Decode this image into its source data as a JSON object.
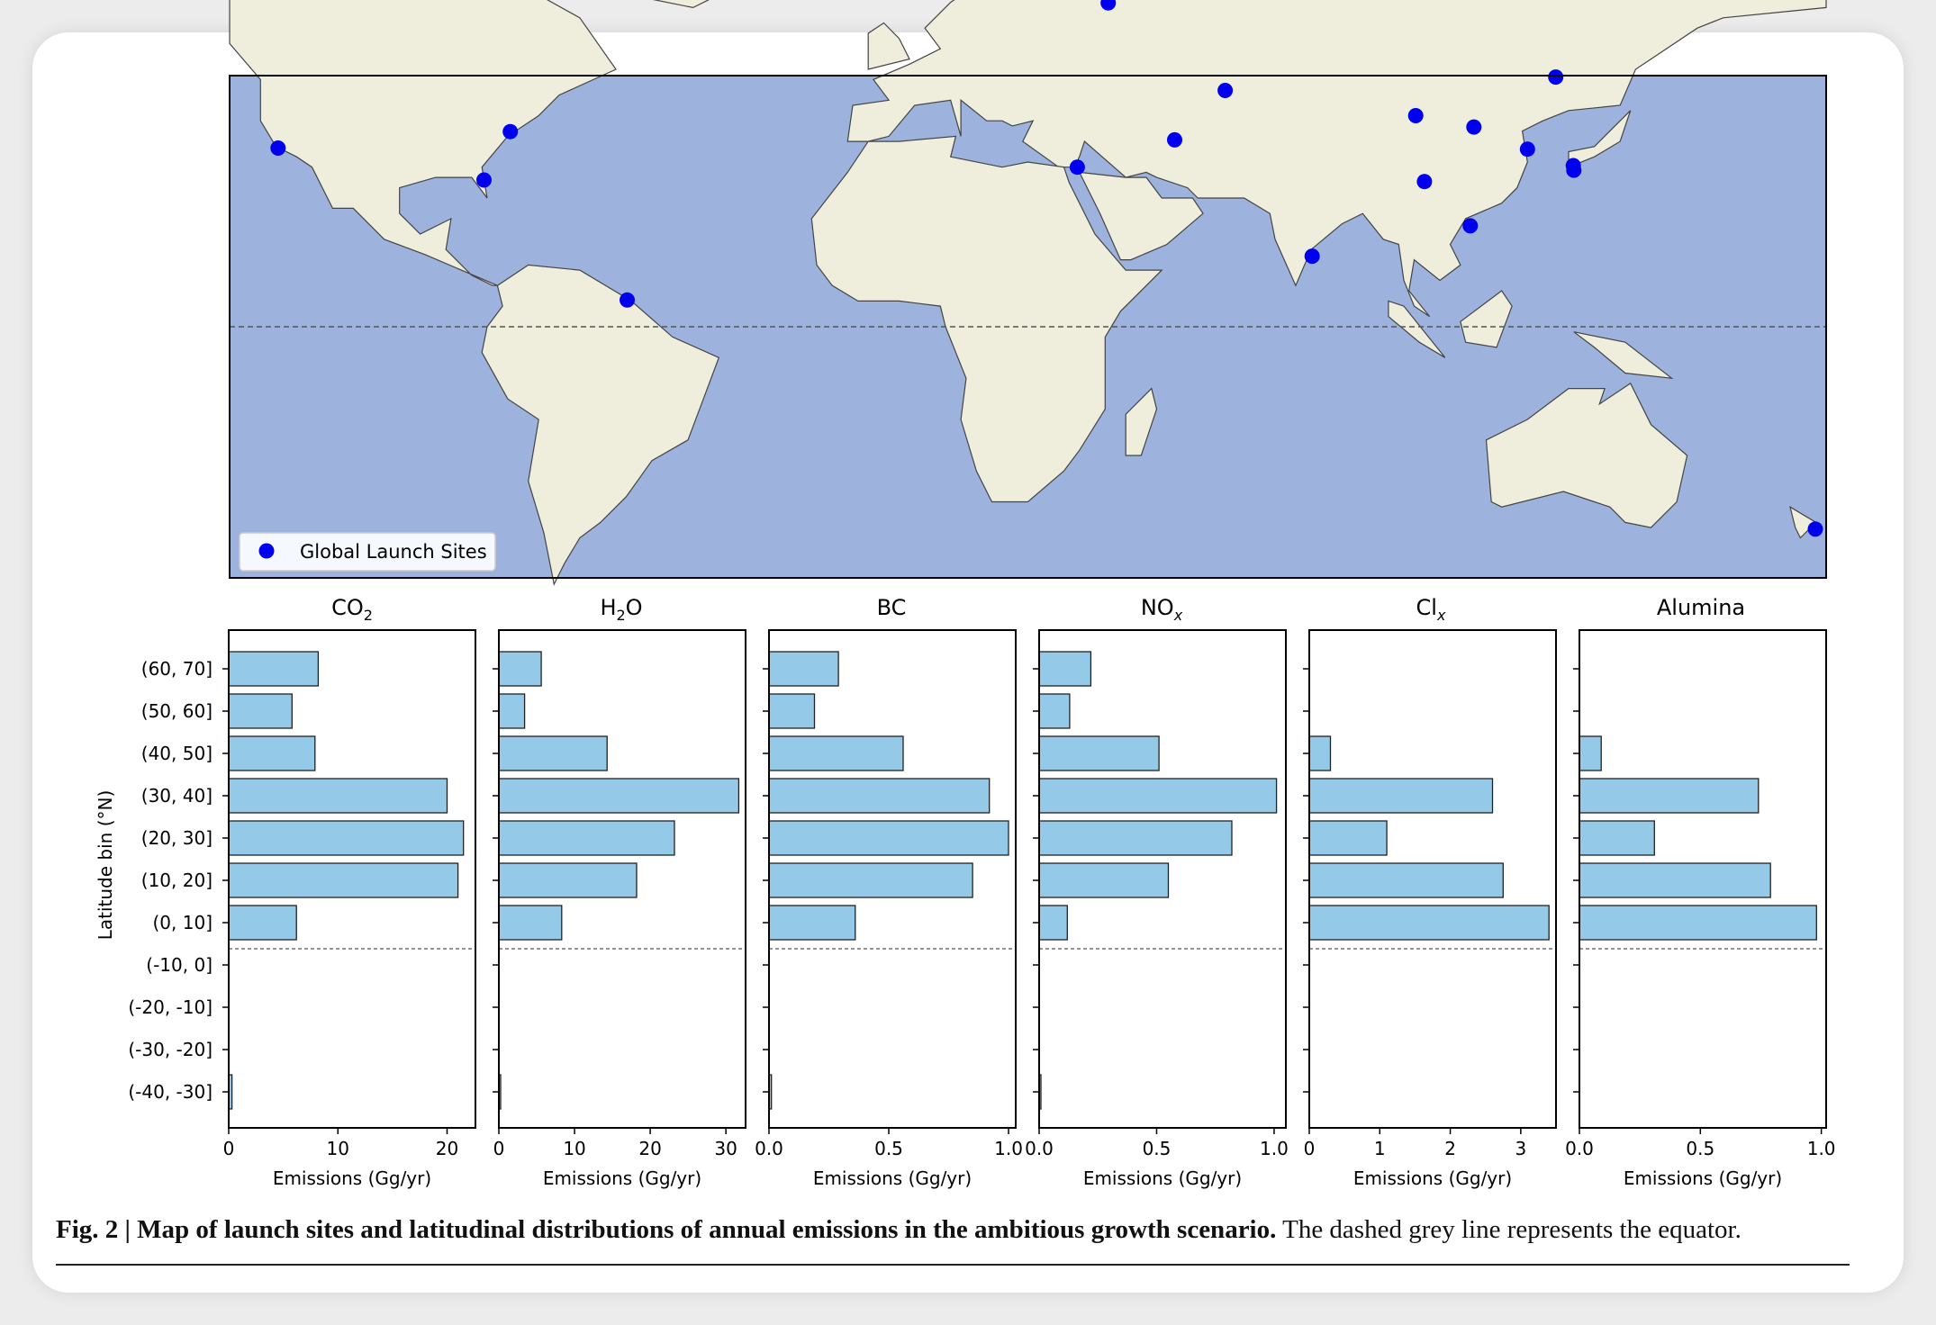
{
  "map": {
    "legend_label": "Global Launch Sites",
    "ocean_color": "#9db3dd",
    "land_color": "#efeedd",
    "site_color": "#0000ee",
    "sites": [
      {
        "lon": -120.6,
        "lat": 34.7
      },
      {
        "lon": -80.6,
        "lat": 28.5
      },
      {
        "lon": -75.5,
        "lat": 37.9
      },
      {
        "lon": -52.8,
        "lat": 5.2
      },
      {
        "lon": 34.6,
        "lat": 31.0
      },
      {
        "lon": 40.6,
        "lat": 62.9
      },
      {
        "lon": 53.5,
        "lat": 36.3
      },
      {
        "lon": 63.3,
        "lat": 45.9
      },
      {
        "lon": 80.2,
        "lat": 13.7
      },
      {
        "lon": 100.3,
        "lat": 41.0
      },
      {
        "lon": 102.0,
        "lat": 28.2
      },
      {
        "lon": 110.9,
        "lat": 19.6
      },
      {
        "lon": 111.6,
        "lat": 38.8
      },
      {
        "lon": 122.0,
        "lat": 34.5
      },
      {
        "lon": 127.5,
        "lat": 48.5
      },
      {
        "lon": 130.9,
        "lat": 31.3
      },
      {
        "lon": 131.0,
        "lat": 30.4
      },
      {
        "lon": 177.9,
        "lat": -39.3
      }
    ]
  },
  "chart_data": {
    "type": "bar",
    "orientation": "horizontal",
    "ylabel": "Latitude bin (°N)",
    "xlabel": "Emissions (Gg/yr)",
    "categories": [
      "(60, 70]",
      "(50, 60]",
      "(40, 50]",
      "(30, 40]",
      "(20, 30]",
      "(10, 20]",
      "(0, 10]",
      "(-10, 0]",
      "(-20, -10]",
      "(-30, -20]",
      "(-40, -30]"
    ],
    "equator_line": "dashed between (0, 10] and (-10, 0]",
    "bar_color": "#95c9e8",
    "panels": [
      {
        "name": "CO",
        "sub": "2",
        "subtype": "sub",
        "xlim": [
          0,
          22.6
        ],
        "ticks": [
          0,
          10,
          20
        ],
        "tick_labels": [
          "0",
          "10",
          "20"
        ],
        "values": [
          8.2,
          5.8,
          7.9,
          20.0,
          21.5,
          21.0,
          6.2,
          0,
          0,
          0,
          0.3
        ]
      },
      {
        "name": "H",
        "sub": "2",
        "after": "O",
        "subtype": "sub",
        "xlim": [
          0,
          32.6
        ],
        "ticks": [
          0,
          10,
          20,
          30
        ],
        "tick_labels": [
          "0",
          "10",
          "20",
          "30"
        ],
        "values": [
          5.6,
          3.4,
          14.3,
          31.7,
          23.2,
          18.2,
          8.3,
          0,
          0,
          0,
          0.2
        ]
      },
      {
        "name": "BC",
        "sub": "",
        "subtype": "none",
        "xlim": [
          0,
          1.03
        ],
        "ticks": [
          0,
          0.5,
          1.0
        ],
        "tick_labels": [
          "0.0",
          "0.5",
          "1.0"
        ],
        "values": [
          0.29,
          0.19,
          0.56,
          0.92,
          1.0,
          0.85,
          0.36,
          0,
          0,
          0,
          0.01
        ]
      },
      {
        "name": "NO",
        "sub": "x",
        "subtype": "italic-sub",
        "xlim": [
          0,
          1.05
        ],
        "ticks": [
          0,
          0.5,
          1.0
        ],
        "tick_labels": [
          "0.0",
          "0.5",
          "1.0"
        ],
        "values": [
          0.22,
          0.13,
          0.51,
          1.01,
          0.82,
          0.55,
          0.12,
          0,
          0,
          0,
          0.005
        ]
      },
      {
        "name": "Cl",
        "sub": "x",
        "subtype": "italic-sub",
        "xlim": [
          0,
          3.5
        ],
        "ticks": [
          0,
          1,
          2,
          3
        ],
        "tick_labels": [
          "0",
          "1",
          "2",
          "3"
        ],
        "values": [
          0,
          0,
          0.3,
          2.6,
          1.1,
          2.75,
          3.4,
          0,
          0,
          0,
          0
        ]
      },
      {
        "name": "Alumina",
        "sub": "",
        "subtype": "none",
        "xlim": [
          0,
          1.02
        ],
        "ticks": [
          0,
          0.5,
          1.0
        ],
        "tick_labels": [
          "0.0",
          "0.5",
          "1.0"
        ],
        "values": [
          0,
          0,
          0.09,
          0.74,
          0.31,
          0.79,
          0.98,
          0,
          0,
          0,
          0
        ]
      }
    ]
  },
  "caption": {
    "bold": "Fig. 2 | Map of launch sites and latitudinal distributions of annual emissions in the ambitious growth scenario.",
    "normal": " The dashed grey line represents the equator."
  }
}
